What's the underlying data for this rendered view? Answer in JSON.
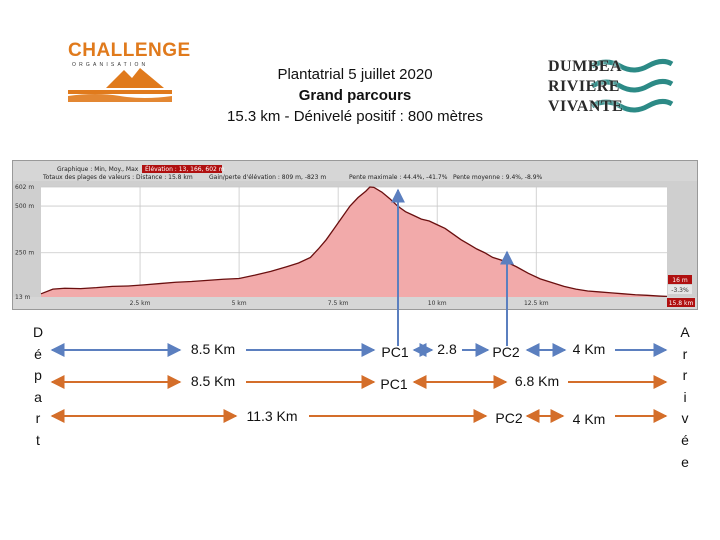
{
  "header": {
    "title_line1": "Plantatrial 5 juillet 2020",
    "title_line2": "Grand parcours",
    "title_line3": "15.3 km - Dénivelé positif : 800 mètres"
  },
  "logos": {
    "challenge": {
      "word": "CHALLENGE",
      "sub": "ORGANISATION",
      "color": "#e07a1c"
    },
    "dumbea": {
      "lines": [
        "DUMBEA",
        "RIVIERE",
        "VIVANTE"
      ],
      "accent": "#2c8a86"
    }
  },
  "chart_data": {
    "type": "area",
    "info": {
      "line1_label": "Graphique : Min, Moy., Max",
      "line1_red": "Élévation : 13, 166, 602 m",
      "line2_a": "Totaux des plages de valeurs : Distance : 15.8 km",
      "line2_b": "Gain/perte d'élévation : 809 m, -823 m",
      "line2_c": "Pente maximale : 44.4%, -41.7%",
      "line2_d": "Pente moyenne : 9.4%, -8.9%"
    },
    "x_unit": "km",
    "y_unit": "m",
    "xlim": [
      0,
      15.8
    ],
    "ylim": [
      13,
      602
    ],
    "x_ticks": [
      {
        "value": 2.5,
        "label": "2.5 km"
      },
      {
        "value": 5,
        "label": "5 km"
      },
      {
        "value": 7.5,
        "label": "7.5 km"
      },
      {
        "value": 10,
        "label": "10 km"
      },
      {
        "value": 12.5,
        "label": "12.5 km"
      }
    ],
    "x_end_label": "15.8 km",
    "y_ticks": [
      {
        "value": 602,
        "label": "602 m"
      },
      {
        "value": 500,
        "label": "500 m"
      },
      {
        "value": 250,
        "label": "250 m"
      },
      {
        "value": 13,
        "label": "13 m"
      }
    ],
    "end_badges": [
      "16 m",
      "-3.3%"
    ],
    "grid": true,
    "colors": {
      "fill": "#f2aaaa",
      "line": "#6a0f0f",
      "badge": "#b01010"
    },
    "series": [
      {
        "x": [
          0,
          0.3,
          0.6,
          1,
          1.4,
          1.8,
          2.2,
          2.6,
          3,
          3.4,
          3.8,
          4.2,
          4.6,
          5,
          5.4,
          5.8,
          6.2,
          6.5,
          6.8,
          7.0,
          7.2,
          7.4,
          7.6,
          7.8,
          8.0,
          8.2,
          8.3,
          8.4,
          8.6,
          8.8,
          9.0,
          9.2,
          9.4,
          9.6,
          9.8,
          10.0,
          10.2,
          10.4,
          10.6,
          10.8,
          11.0,
          11.2,
          11.4,
          11.7,
          12.0,
          12.3,
          12.6,
          12.9,
          13.2,
          13.5,
          13.8,
          14.1,
          14.4,
          14.7,
          15.0,
          15.3,
          15.6,
          15.8
        ],
        "y": [
          30,
          55,
          60,
          58,
          63,
          70,
          72,
          78,
          85,
          92,
          96,
          102,
          108,
          112,
          130,
          150,
          175,
          195,
          225,
          270,
          320,
          380,
          440,
          500,
          545,
          580,
          602,
          600,
          575,
          540,
          500,
          470,
          450,
          430,
          420,
          400,
          380,
          350,
          320,
          295,
          270,
          250,
          225,
          205,
          175,
          140,
          110,
          90,
          70,
          55,
          45,
          40,
          35,
          30,
          25,
          22,
          18,
          16
        ]
      }
    ]
  },
  "routes": {
    "depart": [
      "D",
      "é",
      "p",
      "a",
      "r",
      "t"
    ],
    "arrivee": [
      "A",
      "r",
      "r",
      "i",
      "v",
      "é",
      "e"
    ],
    "row1": {
      "seg1": "8.5 Km",
      "pc1": "PC1",
      "seg2": "2.8",
      "pc2": "PC2",
      "seg3": "4 Km"
    },
    "row2": {
      "seg1": "8.5 Km",
      "pc1": "PC1",
      "seg2": "6.8 Km"
    },
    "row3": {
      "seg1": "11.3 Km",
      "pc2": "PC2",
      "seg2": "4 Km"
    },
    "colors": {
      "blue": "#5b7fbf",
      "orange": "#d46e2a"
    }
  }
}
